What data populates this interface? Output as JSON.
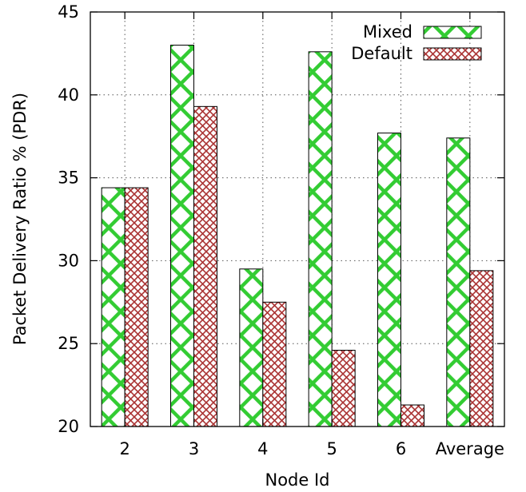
{
  "chart_data": {
    "type": "bar",
    "title": "",
    "xlabel": "Node Id",
    "ylabel": "Packet Delivery Ratio % (PDR)",
    "categories": [
      "2",
      "3",
      "4",
      "5",
      "6",
      "Average"
    ],
    "series": [
      {
        "name": "Mixed",
        "values": [
          34.4,
          43.0,
          29.5,
          42.6,
          37.7,
          37.4
        ],
        "color": "#33cc33"
      },
      {
        "name": "Default",
        "values": [
          34.4,
          39.3,
          27.5,
          24.6,
          21.3,
          29.4
        ],
        "color": "#aa3333"
      }
    ],
    "ylim": [
      20,
      45
    ],
    "yticks": [
      "20",
      "25",
      "30",
      "35",
      "40",
      "45"
    ],
    "grid": true,
    "legend_position": "top-right"
  }
}
